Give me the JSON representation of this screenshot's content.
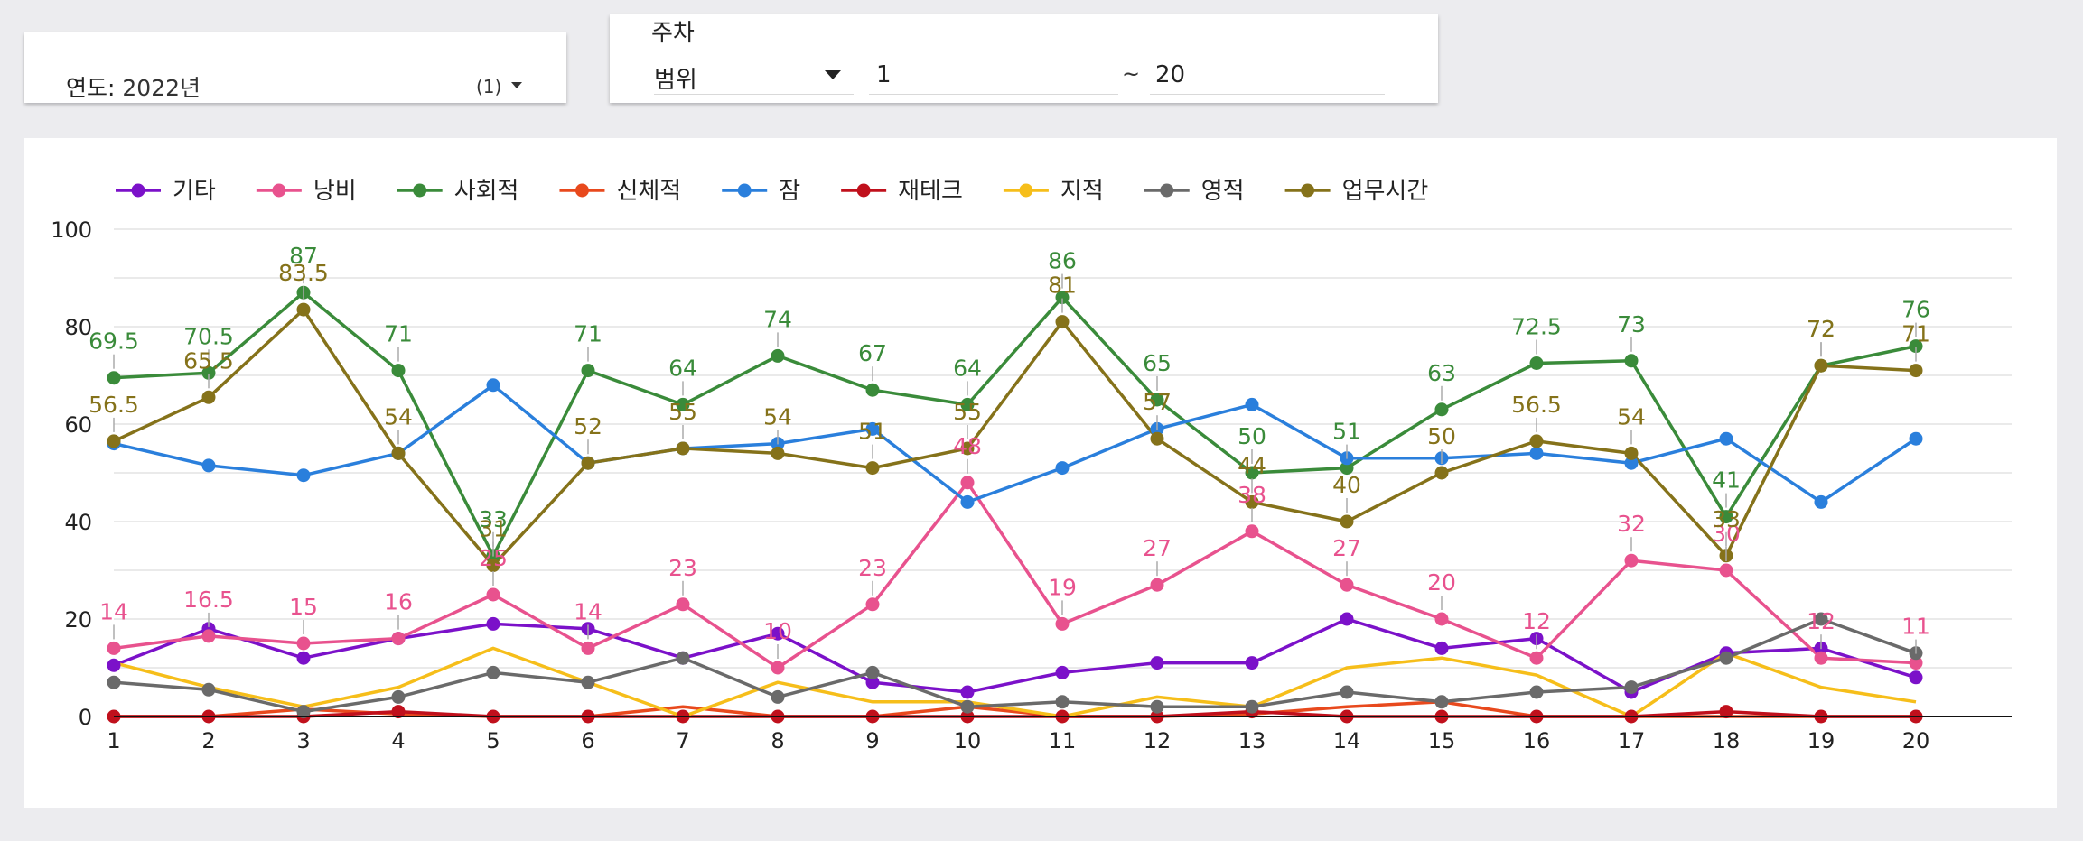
{
  "filters": {
    "year": {
      "label": "연도",
      "value": "2022년",
      "count": "(1)"
    },
    "week": {
      "title": "주차",
      "mode": "범위",
      "min": "1",
      "max": "20",
      "separator": "~"
    }
  },
  "chart_data": {
    "type": "line",
    "categories": [
      "1",
      "2",
      "3",
      "4",
      "5",
      "6",
      "7",
      "8",
      "9",
      "10",
      "11",
      "12",
      "13",
      "14",
      "15",
      "16",
      "17",
      "18",
      "19",
      "20"
    ],
    "ylim": [
      0,
      100
    ],
    "yticks": [
      0,
      20,
      40,
      60,
      80,
      100
    ],
    "grid": true,
    "legend_position": "top-left",
    "series": [
      {
        "name": "기타",
        "color": "#7b11c9",
        "markers": true,
        "labeled": false,
        "values": [
          10.5,
          18,
          12,
          16,
          19,
          18,
          12,
          17,
          7,
          5,
          9,
          11,
          11,
          20,
          14,
          16,
          5,
          13,
          14,
          8
        ]
      },
      {
        "name": "낭비",
        "color": "#e8528e",
        "markers": true,
        "labeled": true,
        "values": [
          14,
          16.5,
          15,
          16,
          25,
          14,
          23,
          10,
          23,
          48,
          19,
          27,
          38,
          27,
          20,
          12,
          32,
          30,
          12,
          11
        ]
      },
      {
        "name": "사회적",
        "color": "#3a8b3a",
        "markers": true,
        "labeled": true,
        "values": [
          69.5,
          70.5,
          87,
          71,
          33,
          71,
          64,
          74,
          67,
          64,
          86,
          65,
          50,
          51,
          63,
          72.5,
          73,
          41,
          72,
          76
        ]
      },
      {
        "name": "신체적",
        "color": "#e8491d",
        "markers": false,
        "labeled": false,
        "values": [
          0,
          0,
          1.5,
          0.5,
          0,
          0,
          2,
          0,
          0,
          2,
          0,
          0,
          0.5,
          2,
          3,
          0,
          0,
          0,
          0,
          0
        ]
      },
      {
        "name": "잠",
        "color": "#2a7fdc",
        "markers": true,
        "labeled": false,
        "values": [
          56,
          51.5,
          49.5,
          54,
          68,
          52,
          55,
          56,
          59,
          44,
          51,
          59,
          64,
          53,
          53,
          54,
          52,
          57,
          44,
          57
        ]
      },
      {
        "name": "재테크",
        "color": "#c0101c",
        "markers": true,
        "labeled": false,
        "values": [
          0,
          0,
          0,
          1,
          0,
          0,
          0,
          0,
          0,
          0,
          0,
          0,
          1,
          0,
          0,
          0,
          0,
          1,
          0,
          0
        ]
      },
      {
        "name": "지적",
        "color": "#f6be1a",
        "markers": false,
        "labeled": false,
        "values": [
          11,
          6,
          2,
          6,
          14,
          7,
          0,
          7,
          3,
          3,
          0,
          4,
          2,
          10,
          12,
          8.5,
          0,
          13,
          6,
          3
        ]
      },
      {
        "name": "영적",
        "color": "#6a6a6a",
        "markers": true,
        "labeled": false,
        "values": [
          7,
          5.5,
          1,
          4,
          9,
          7,
          12,
          4,
          9,
          2,
          3,
          2,
          2,
          5,
          3,
          5,
          6,
          12,
          20,
          13
        ]
      },
      {
        "name": "업무시간",
        "color": "#85721a",
        "markers": true,
        "labeled": true,
        "values": [
          56.5,
          65.5,
          83.5,
          54,
          31,
          52,
          55,
          54,
          51,
          55,
          81,
          57,
          44,
          40,
          50,
          56.5,
          54,
          33,
          72,
          71
        ]
      }
    ]
  }
}
